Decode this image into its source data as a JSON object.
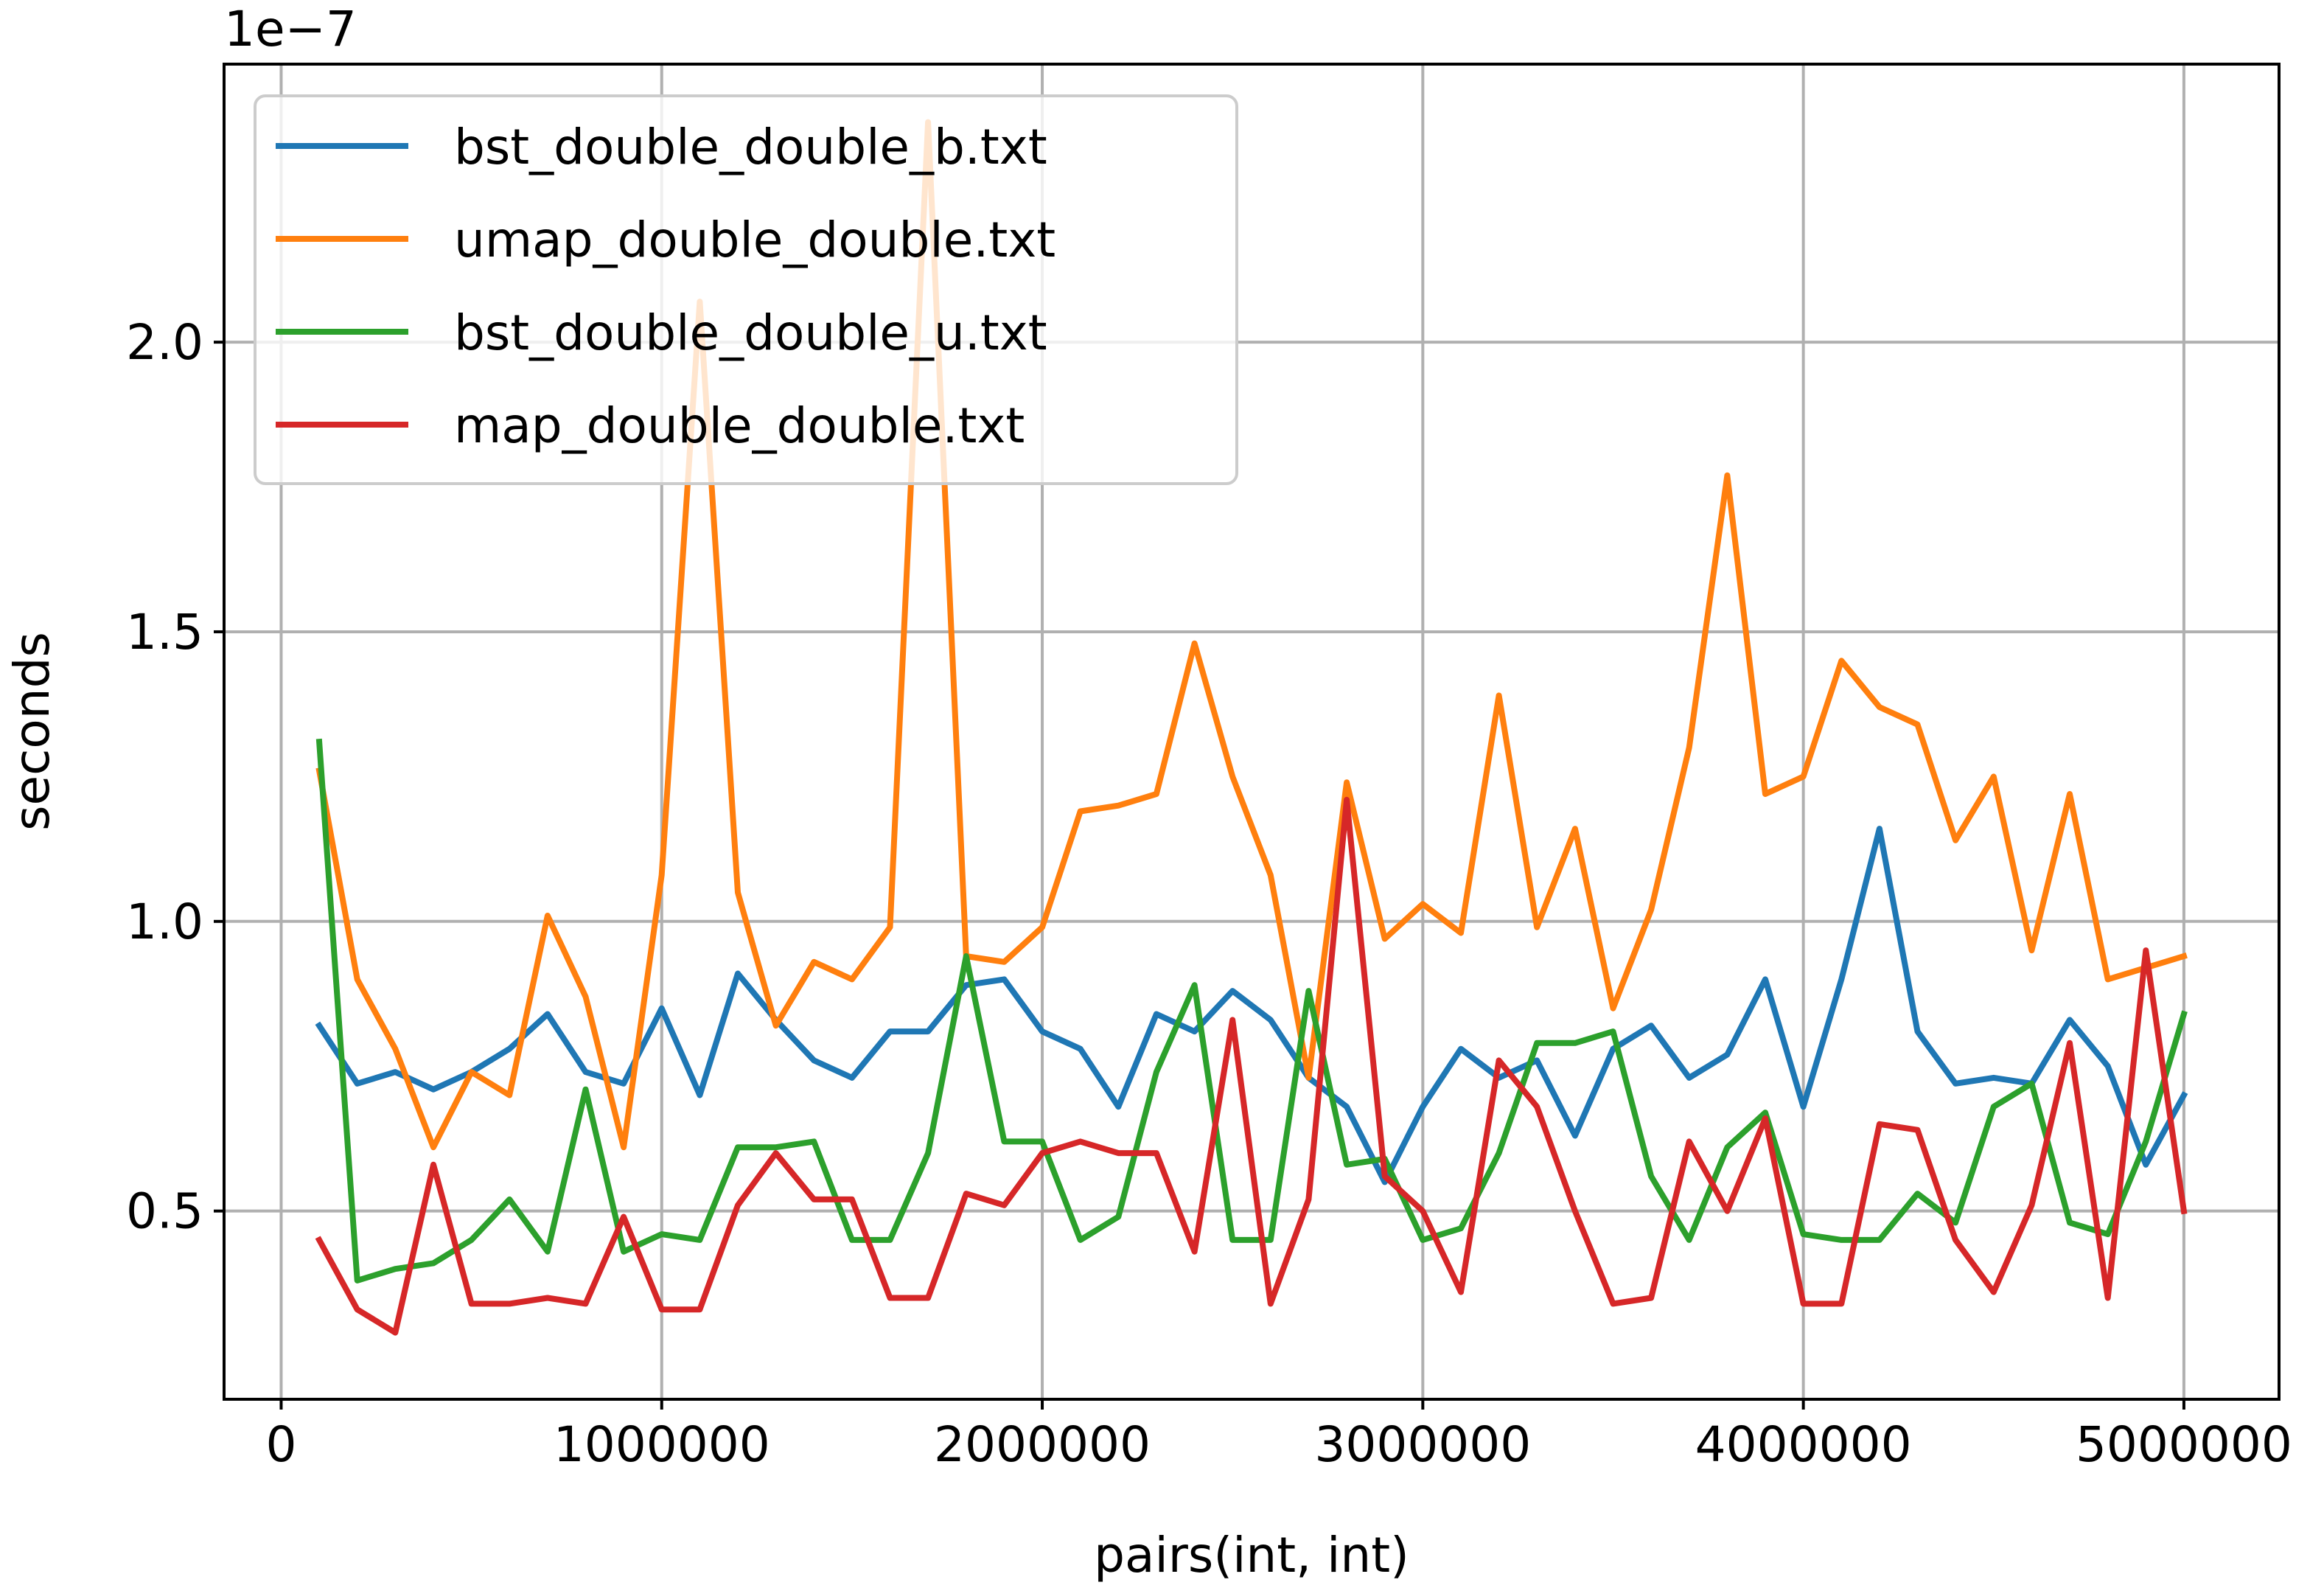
{
  "chart_data": {
    "type": "line",
    "title": "",
    "xlabel": "pairs(int, int)",
    "ylabel": "seconds",
    "y_offset_text": "1e−7",
    "xlim": [
      -150000,
      5250000
    ],
    "ylim": [
      1.75e-08,
      2.48e-07
    ],
    "x_ticks": [
      0,
      1000000,
      2000000,
      3000000,
      4000000,
      5000000
    ],
    "x_tick_labels": [
      "0",
      "1000000",
      "2000000",
      "3000000",
      "4000000",
      "5000000"
    ],
    "y_ticks": [
      5e-08,
      1e-07,
      1.5e-07,
      2e-07
    ],
    "y_tick_labels": [
      "0.5",
      "1.0",
      "1.5",
      "2.0"
    ],
    "grid": true,
    "legend_position": "top-left",
    "x": [
      100000,
      200000,
      300000,
      400000,
      500000,
      600000,
      700000,
      800000,
      900000,
      1000000,
      1100000,
      1200000,
      1300000,
      1400000,
      1500000,
      1600000,
      1700000,
      1800000,
      1900000,
      2000000,
      2100000,
      2200000,
      2300000,
      2400000,
      2500000,
      2600000,
      2700000,
      2800000,
      2900000,
      3000000,
      3100000,
      3200000,
      3300000,
      3400000,
      3500000,
      3600000,
      3700000,
      3800000,
      3900000,
      4000000,
      4100000,
      4200000,
      4300000,
      4400000,
      4500000,
      4600000,
      4700000,
      4800000,
      4900000,
      5000000
    ],
    "series": [
      {
        "name": "bst_double_double_b.txt",
        "color": "#1f77b4",
        "values": [
          8.2e-08,
          7.2e-08,
          7.4e-08,
          7.1e-08,
          7.4e-08,
          7.8e-08,
          8.4e-08,
          7.4e-08,
          7.2e-08,
          8.5e-08,
          7e-08,
          9.1e-08,
          8.3e-08,
          7.6e-08,
          7.3e-08,
          8.1e-08,
          8.1e-08,
          8.9e-08,
          9e-08,
          8.1e-08,
          7.8e-08,
          6.8e-08,
          8.4e-08,
          8.1e-08,
          8.8e-08,
          8.3e-08,
          7.3e-08,
          6.8e-08,
          5.5e-08,
          6.8e-08,
          7.8e-08,
          7.3e-08,
          7.6e-08,
          6.3e-08,
          7.8e-08,
          8.2e-08,
          7.3e-08,
          7.7e-08,
          9e-08,
          6.8e-08,
          9e-08,
          1.16e-07,
          8.1e-08,
          7.2e-08,
          7.3e-08,
          7.2e-08,
          8.3e-08,
          7.5e-08,
          5.8e-08,
          7e-08
        ]
      },
      {
        "name": "umap_double_double.txt",
        "color": "#ff7f0e",
        "values": [
          1.26e-07,
          9e-08,
          7.8e-08,
          6.1e-08,
          7.4e-08,
          7e-08,
          1.01e-07,
          8.7e-08,
          6.1e-08,
          1.08e-07,
          2.07e-07,
          1.05e-07,
          8.2e-08,
          9.3e-08,
          9e-08,
          9.9e-08,
          2.38e-07,
          9.4e-08,
          9.3e-08,
          9.9e-08,
          1.19e-07,
          1.2e-07,
          1.22e-07,
          1.48e-07,
          1.25e-07,
          1.08e-07,
          7.3e-08,
          1.24e-07,
          9.7e-08,
          1.03e-07,
          9.8e-08,
          1.39e-07,
          9.9e-08,
          1.16e-07,
          8.5e-08,
          1.02e-07,
          1.3e-07,
          1.77e-07,
          1.22e-07,
          1.25e-07,
          1.45e-07,
          1.37e-07,
          1.34e-07,
          1.14e-07,
          1.25e-07,
          9.5e-08,
          1.22e-07,
          9e-08,
          9.2e-08,
          9.4e-08
        ]
      },
      {
        "name": "bst_double_double_u.txt",
        "color": "#2ca02c",
        "values": [
          1.31e-07,
          3.8e-08,
          4e-08,
          4.1e-08,
          4.5e-08,
          5.2e-08,
          4.3e-08,
          7.1e-08,
          4.3e-08,
          4.6e-08,
          4.5e-08,
          6.1e-08,
          6.1e-08,
          6.2e-08,
          4.5e-08,
          4.5e-08,
          6e-08,
          9.4e-08,
          6.2e-08,
          6.2e-08,
          4.5e-08,
          4.9e-08,
          7.4e-08,
          8.9e-08,
          4.5e-08,
          4.5e-08,
          8.8e-08,
          5.8e-08,
          5.9e-08,
          4.5e-08,
          4.7e-08,
          6e-08,
          7.9e-08,
          7.9e-08,
          8.1e-08,
          5.6e-08,
          4.5e-08,
          6.1e-08,
          6.7e-08,
          4.6e-08,
          4.5e-08,
          4.5e-08,
          5.3e-08,
          4.8e-08,
          6.8e-08,
          7.2e-08,
          4.8e-08,
          4.6e-08,
          6.2e-08,
          8.4e-08
        ]
      },
      {
        "name": "map_double_double.txt",
        "color": "#d62728",
        "values": [
          4.5e-08,
          3.3e-08,
          2.9e-08,
          5.8e-08,
          3.4e-08,
          3.4e-08,
          3.5e-08,
          3.4e-08,
          4.9e-08,
          3.3e-08,
          3.3e-08,
          5.1e-08,
          6e-08,
          5.2e-08,
          5.2e-08,
          3.5e-08,
          3.5e-08,
          5.3e-08,
          5.1e-08,
          6e-08,
          6.2e-08,
          6e-08,
          6e-08,
          4.3e-08,
          8.3e-08,
          3.4e-08,
          5.2e-08,
          1.21e-07,
          5.6e-08,
          5e-08,
          3.6e-08,
          7.6e-08,
          6.8e-08,
          5e-08,
          3.4e-08,
          3.5e-08,
          6.2e-08,
          5e-08,
          6.6e-08,
          3.4e-08,
          3.4e-08,
          6.5e-08,
          6.4e-08,
          4.5e-08,
          3.6e-08,
          5.1e-08,
          7.9e-08,
          3.5e-08,
          9.5e-08,
          5e-08
        ]
      }
    ]
  }
}
